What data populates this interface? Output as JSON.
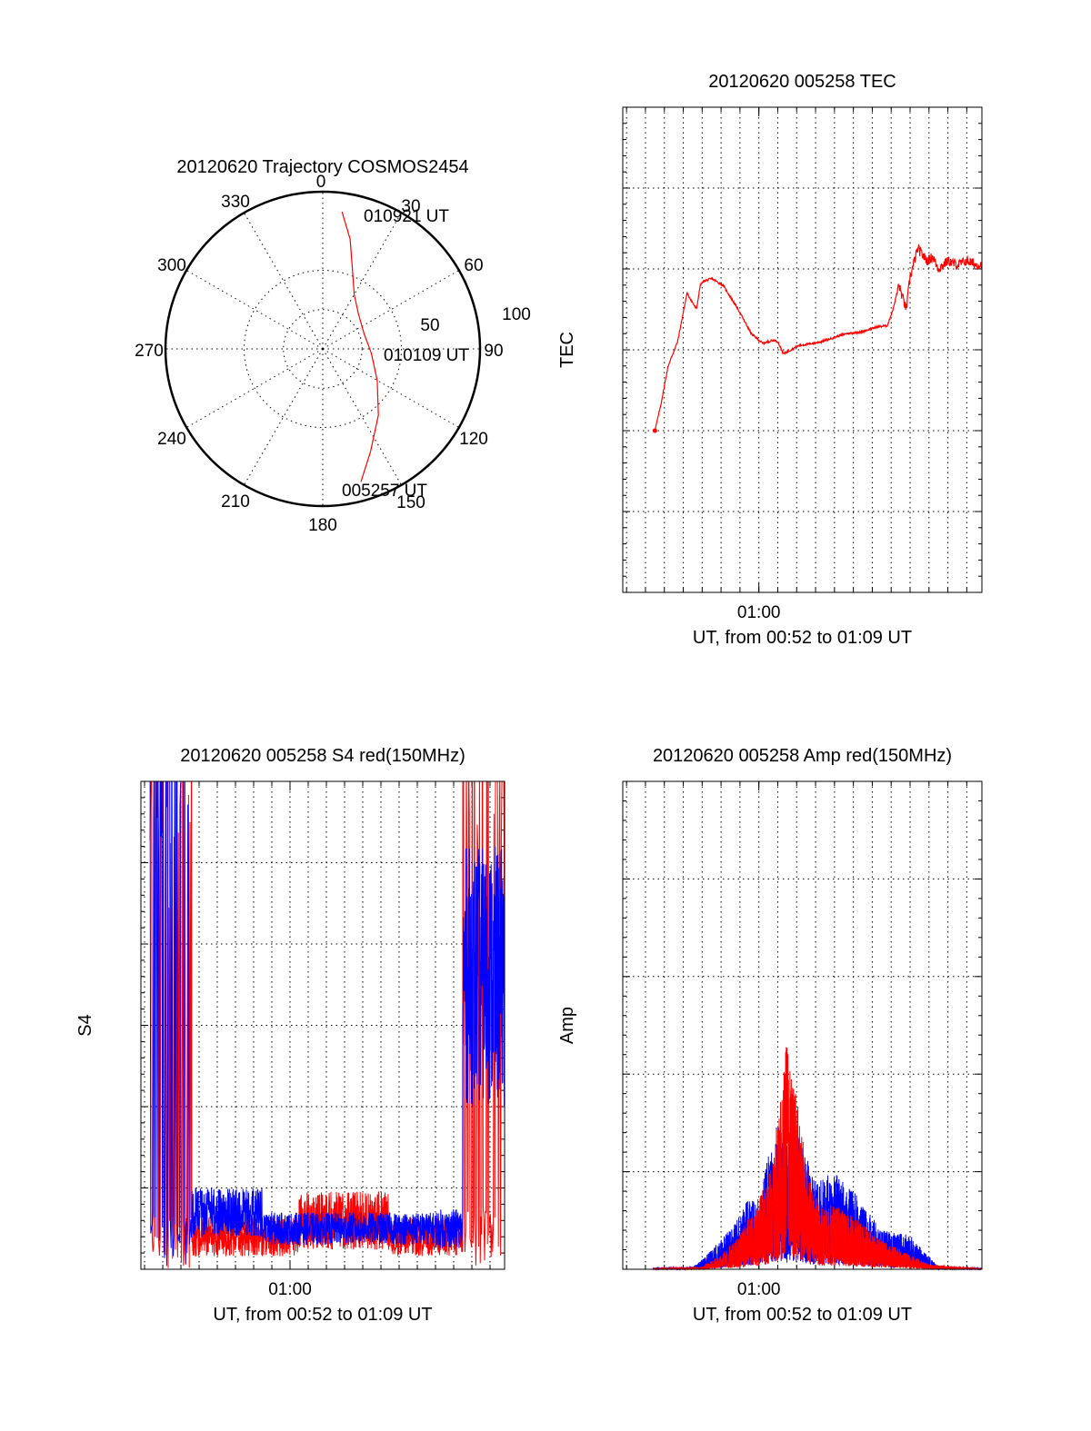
{
  "colors": {
    "red": "#ff0000",
    "blue": "#0000ff",
    "axis": "#000000",
    "background": "#ffffff"
  },
  "chart_data": [
    {
      "id": "trajectory",
      "type": "polar",
      "title": "20120620 Trajectory COSMOS2454",
      "azimuth_labels": [
        "0",
        "30",
        "60",
        "90",
        "120",
        "150",
        "180",
        "210",
        "240",
        "270",
        "300",
        "330"
      ],
      "radial_labels": [
        "50",
        "100"
      ],
      "zenith_rings": [
        50,
        100
      ],
      "grid": true,
      "series": [
        {
          "color": "#ff0000",
          "points_az_zen": [
            [
              8,
              88
            ],
            [
              14,
              72
            ],
            [
              20,
              55
            ],
            [
              30,
              40
            ],
            [
              45,
              32
            ],
            [
              70,
              28
            ],
            [
              95,
              31
            ],
            [
              120,
              40
            ],
            [
              140,
              55
            ],
            [
              155,
              72
            ],
            [
              164,
              88
            ]
          ]
        }
      ],
      "annotations": [
        {
          "text": "010921 UT",
          "az": 18,
          "zen": 80
        },
        {
          "text": "010109 UT",
          "az": 92,
          "zen": 52
        },
        {
          "text": "005257 UT",
          "az": 164,
          "zen": 95
        }
      ]
    },
    {
      "id": "tec",
      "type": "line",
      "title": "20120620 005258 TEC",
      "xlabel": "UT, from 00:52 to 01:09 UT",
      "ylabel": "TEC",
      "ylim": [
        -20,
        40
      ],
      "yticks": [
        -20,
        -10,
        0,
        10,
        20,
        30,
        40
      ],
      "xlim_min": [
        52.8,
        71.8
      ],
      "xtick_labels": [
        {
          "x_min": 60,
          "label": "01:00"
        }
      ],
      "grid": true,
      "series": [
        {
          "color": "#ff0000",
          "x_min": [
            54.5,
            54.8,
            55.2,
            55.7,
            56.2,
            56.7,
            56.9,
            57.1,
            57.5,
            58.1,
            58.9,
            59.6,
            60.2,
            60.8,
            61.0,
            61.3,
            62.1,
            63.3,
            64.6,
            65.4,
            66.2,
            66.8,
            67.1,
            67.4,
            67.8,
            68.0,
            68.4,
            68.9,
            69.2,
            69.5,
            70.0,
            70.5,
            71.0,
            71.5,
            71.8
          ],
          "values": [
            0,
            3,
            8,
            11,
            17,
            15,
            18,
            18.5,
            18.8,
            18,
            15,
            12,
            10.8,
            11.2,
            11.0,
            9.5,
            10.5,
            11,
            12,
            12.2,
            12.8,
            13,
            15,
            18,
            15,
            19,
            22.5,
            21,
            21.5,
            20,
            21,
            20.5,
            21,
            20.5,
            20.5
          ]
        }
      ]
    },
    {
      "id": "s4",
      "type": "line",
      "title": "20120620 005258 S4 red(150MHz)",
      "xlabel": "UT, from 00:52 to 01:09 UT",
      "ylabel": "S4",
      "ylim": [
        0,
        3
      ],
      "yticks_labels": [
        "0",
        "0.5",
        "1",
        "1.5",
        "2",
        "2.5",
        "3"
      ],
      "xlim_min": [
        51.8,
        71.8
      ],
      "xtick_labels": [
        {
          "x_min": 60,
          "label": "01:00"
        }
      ],
      "grid": true,
      "series": [
        {
          "color": "#ff0000",
          "segments": [
            {
              "x_range": [
                52.3,
                54.6
              ],
              "mean": 1.8,
              "amp": 1.6
            },
            {
              "x_range": [
                54.6,
                60.5
              ],
              "mean": 0.2,
              "amp": 0.12
            },
            {
              "x_range": [
                60.5,
                65.5
              ],
              "mean": 0.3,
              "amp": 0.18
            },
            {
              "x_range": [
                65.5,
                69.5
              ],
              "mean": 0.2,
              "amp": 0.12
            },
            {
              "x_range": [
                69.5,
                71.8
              ],
              "mean": 1.9,
              "amp": 1.5
            }
          ]
        },
        {
          "color": "#0000ff",
          "segments": [
            {
              "x_range": [
                52.3,
                54.6
              ],
              "mean": 1.8,
              "amp": 1.7
            },
            {
              "x_range": [
                54.6,
                58.5
              ],
              "mean": 0.35,
              "amp": 0.15
            },
            {
              "x_range": [
                58.5,
                68.0
              ],
              "mean": 0.25,
              "amp": 0.1
            },
            {
              "x_range": [
                68.0,
                69.5
              ],
              "mean": 0.25,
              "amp": 0.12
            },
            {
              "x_range": [
                69.5,
                71.8
              ],
              "mean": 1.8,
              "amp": 0.8
            }
          ]
        }
      ]
    },
    {
      "id": "amp",
      "type": "line",
      "title": "20120620 005258 Amp red(150MHz)",
      "xlabel": "UT, from 00:52 to 01:09 UT",
      "ylabel": "Amp",
      "ylim": [
        0,
        1000
      ],
      "yticks": [
        0,
        200,
        400,
        600,
        800,
        1000
      ],
      "xlim_min": [
        52.8,
        71.8
      ],
      "xtick_labels": [
        {
          "x_min": 60,
          "label": "01:00"
        }
      ],
      "grid": true,
      "series": [
        {
          "color": "#0000ff",
          "envelope": {
            "x_min": [
              54.5,
              56.5,
              57.0,
              58.0,
              59.0,
              59.5,
              60.0,
              60.5,
              61.0,
              61.5,
              62.0,
              63.0,
              64.0,
              65.0,
              66.5,
              68.0,
              69.5,
              71.8
            ],
            "peak": [
              3,
              5,
              20,
              60,
              110,
              150,
              130,
              240,
              300,
              260,
              290,
              180,
              200,
              160,
              80,
              70,
              5,
              3
            ]
          }
        },
        {
          "color": "#ff0000",
          "envelope": {
            "x_min": [
              54.5,
              57.0,
              58.0,
              59.0,
              60.0,
              60.5,
              61.0,
              61.5,
              62.0,
              62.5,
              63.0,
              64.0,
              65.0,
              66.5,
              68.0,
              69.0,
              71.8
            ],
            "peak": [
              2,
              5,
              30,
              70,
              150,
              180,
              300,
              480,
              350,
              220,
              150,
              130,
              110,
              60,
              30,
              10,
              2
            ]
          }
        }
      ]
    }
  ]
}
